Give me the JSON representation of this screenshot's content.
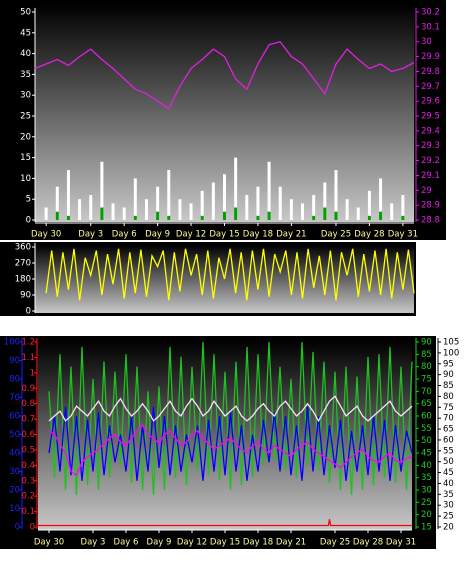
{
  "chart_data": [
    {
      "type": "bar",
      "xlim": [
        -1,
        33
      ],
      "xticks": [
        {
          "value": 0,
          "label": "Day 30"
        },
        {
          "value": 4,
          "label": "Day 3"
        },
        {
          "value": 7,
          "label": "Day 6"
        },
        {
          "value": 10,
          "label": "Day 9"
        },
        {
          "value": 13,
          "label": "Day 12"
        },
        {
          "value": 16,
          "label": "Day 15"
        },
        {
          "value": 19,
          "label": "Day 18"
        },
        {
          "value": 22,
          "label": "Day 21"
        },
        {
          "value": 26,
          "label": "Day 25"
        },
        {
          "value": 29,
          "label": "Day 28"
        },
        {
          "value": 32,
          "label": "Day 31"
        }
      ],
      "ylim": [
        0,
        50
      ],
      "yticks": [
        0,
        5,
        10,
        15,
        20,
        25,
        30,
        35,
        40,
        45,
        50
      ],
      "ycolor": "#ffffff",
      "y2lim": [
        28.8,
        30.2
      ],
      "y2ticks": [
        28.8,
        28.9,
        29,
        29.1,
        29.2,
        29.3,
        29.4,
        29.5,
        29.6,
        29.7,
        29.8,
        29.9,
        30,
        30.1,
        30.2
      ],
      "y2color": "#e020e0",
      "series": [
        {
          "color": "#ffffff",
          "axis": "y",
          "x": [
            0,
            1,
            2,
            3,
            4,
            5,
            6,
            7,
            8,
            9,
            10,
            11,
            12,
            13,
            14,
            15,
            16,
            17,
            18,
            19,
            20,
            21,
            22,
            23,
            24,
            25,
            26,
            27,
            28,
            29,
            30,
            31,
            32
          ],
          "values": [
            3,
            8,
            12,
            5,
            6,
            14,
            4,
            3,
            10,
            5,
            8,
            12,
            5,
            4,
            7,
            9,
            11,
            15,
            6,
            8,
            14,
            8,
            5,
            4,
            6,
            9,
            12,
            5,
            3,
            7,
            10,
            4,
            6
          ]
        },
        {
          "color": "#00a000",
          "axis": "y",
          "x": [
            0,
            1,
            2,
            3,
            4,
            5,
            6,
            7,
            8,
            9,
            10,
            11,
            12,
            13,
            14,
            15,
            16,
            17,
            18,
            19,
            20,
            21,
            22,
            23,
            24,
            25,
            26,
            27,
            28,
            29,
            30,
            31,
            32
          ],
          "values": [
            0,
            2,
            1,
            0,
            0,
            3,
            0,
            0,
            1,
            0,
            2,
            1,
            0,
            0,
            1,
            0,
            2,
            3,
            0,
            1,
            2,
            0,
            0,
            0,
            1,
            3,
            2,
            0,
            0,
            1,
            2,
            0,
            1
          ]
        },
        {
          "color": "#e020e0",
          "axis": "y2",
          "type": "line",
          "x": [
            -1,
            0,
            1,
            2,
            3,
            4,
            5,
            6,
            7,
            8,
            9,
            10,
            11,
            12,
            13,
            14,
            15,
            16,
            17,
            18,
            19,
            20,
            21,
            22,
            23,
            24,
            25,
            26,
            27,
            28,
            29,
            30,
            31,
            32,
            33
          ],
          "values": [
            29.82,
            29.85,
            29.88,
            29.84,
            29.9,
            29.95,
            29.88,
            29.82,
            29.75,
            29.68,
            29.65,
            29.6,
            29.55,
            29.7,
            29.82,
            29.88,
            29.95,
            29.9,
            29.75,
            29.68,
            29.85,
            29.98,
            30,
            29.9,
            29.85,
            29.75,
            29.65,
            29.85,
            29.95,
            29.88,
            29.82,
            29.85,
            29.8,
            29.82,
            29.86
          ]
        }
      ]
    },
    {
      "type": "line",
      "xlim": [
        -1,
        33
      ],
      "ylim": [
        0,
        360
      ],
      "yticks": [
        0,
        90,
        180,
        270,
        360
      ],
      "ycolor": "#ffffff",
      "x": [
        0,
        0.5,
        1,
        1.5,
        2,
        2.5,
        3,
        3.5,
        4,
        4.5,
        5,
        5.5,
        6,
        6.5,
        7,
        7.5,
        8,
        8.5,
        9,
        9.5,
        10,
        10.5,
        11,
        11.5,
        12,
        12.5,
        13,
        13.5,
        14,
        14.5,
        15,
        15.5,
        16,
        16.5,
        17,
        17.5,
        18,
        18.5,
        19,
        19.5,
        20,
        20.5,
        21,
        21.5,
        22,
        22.5,
        23,
        23.5,
        24,
        24.5,
        25,
        25.5,
        26,
        26.5,
        27,
        27.5,
        28,
        28.5,
        29,
        29.5,
        30,
        30.5,
        31,
        31.5,
        32,
        32.5,
        33
      ],
      "series": [
        {
          "color": "#ffff00",
          "axis": "y",
          "values": [
            100,
            340,
            80,
            330,
            120,
            350,
            60,
            300,
            200,
            340,
            90,
            320,
            150,
            350,
            70,
            330,
            100,
            345,
            80,
            310,
            250,
            340,
            60,
            330,
            110,
            350,
            200,
            320,
            90,
            340,
            70,
            300,
            180,
            350,
            100,
            330,
            60,
            340,
            120,
            350,
            80,
            320,
            220,
            340,
            90,
            330,
            70,
            350,
            130,
            310,
            90,
            340,
            60,
            330,
            200,
            350,
            80,
            320,
            110,
            340,
            90,
            350,
            70,
            330,
            120,
            345,
            100
          ]
        }
      ]
    },
    {
      "type": "line",
      "xlim": [
        -1,
        33
      ],
      "xticks": [
        {
          "value": 0,
          "label": "Day 30"
        },
        {
          "value": 4,
          "label": "Day 3"
        },
        {
          "value": 7,
          "label": "Day 6"
        },
        {
          "value": 10,
          "label": "Day 9"
        },
        {
          "value": 13,
          "label": "Day 12"
        },
        {
          "value": 16,
          "label": "Day 15"
        },
        {
          "value": 19,
          "label": "Day 18"
        },
        {
          "value": 22,
          "label": "Day 21"
        },
        {
          "value": 26,
          "label": "Day 25"
        },
        {
          "value": 29,
          "label": "Day 28"
        },
        {
          "value": 32,
          "label": "Day 31"
        }
      ],
      "ylim": [
        0,
        100
      ],
      "yticks": [
        0,
        10,
        20,
        30,
        40,
        50,
        60,
        70,
        80,
        90,
        100
      ],
      "ycolor": "#2020ff",
      "y3lim": [
        0,
        1.2
      ],
      "y3ticks": [
        0,
        0.1,
        0.2,
        0.3,
        0.4,
        0.5,
        0.6,
        0.7,
        0.8,
        0.9,
        1,
        1.1,
        1.2
      ],
      "y3color": "#ff2020",
      "y2lim": [
        15,
        90
      ],
      "y2ticks": [
        15,
        20,
        25,
        30,
        35,
        40,
        45,
        50,
        55,
        60,
        65,
        70,
        75,
        80,
        85,
        90
      ],
      "y2color": "#20d020",
      "y4lim": [
        20,
        105
      ],
      "y4ticks": [
        20,
        25,
        30,
        35,
        40,
        45,
        50,
        55,
        60,
        65,
        70,
        75,
        80,
        85,
        90,
        95,
        100,
        105
      ],
      "y4color": "#000000",
      "x": [
        0,
        0.5,
        1,
        1.5,
        2,
        2.5,
        3,
        3.5,
        4,
        4.5,
        5,
        5.5,
        6,
        6.5,
        7,
        7.5,
        8,
        8.5,
        9,
        9.5,
        10,
        10.5,
        11,
        11.5,
        12,
        12.5,
        13,
        13.5,
        14,
        14.5,
        15,
        15.5,
        16,
        16.5,
        17,
        17.5,
        18,
        18.5,
        19,
        19.5,
        20,
        20.5,
        21,
        21.5,
        22,
        22.5,
        23,
        23.5,
        24,
        24.5,
        25,
        25.5,
        26,
        26.5,
        27,
        27.5,
        28,
        28.5,
        29,
        29.5,
        30,
        30.5,
        31,
        31.5,
        32,
        32.5,
        33
      ],
      "series": [
        {
          "color": "#20c020",
          "axis": "y2",
          "values": [
            70,
            35,
            85,
            30,
            80,
            28,
            88,
            32,
            75,
            30,
            82,
            35,
            78,
            40,
            85,
            33,
            80,
            30,
            70,
            28,
            72,
            30,
            88,
            35,
            84,
            32,
            80,
            38,
            90,
            36,
            85,
            34,
            78,
            30,
            82,
            32,
            88,
            35,
            85,
            40,
            90,
            42,
            80,
            38,
            75,
            35,
            90,
            40,
            86,
            38,
            82,
            33,
            78,
            30,
            80,
            28,
            76,
            30,
            84,
            32,
            85,
            35,
            88,
            33,
            80,
            30,
            82
          ]
        },
        {
          "color": "#0000ff",
          "axis": "y",
          "values": [
            40,
            60,
            30,
            65,
            28,
            60,
            25,
            58,
            30,
            62,
            28,
            55,
            35,
            50,
            30,
            60,
            25,
            55,
            30,
            65,
            32,
            60,
            28,
            55,
            30,
            50,
            35,
            55,
            25,
            58,
            30,
            60,
            28,
            62,
            30,
            55,
            25,
            50,
            30,
            58,
            35,
            62,
            30,
            60,
            28,
            55,
            25,
            65,
            30,
            60,
            28,
            55,
            32,
            58,
            25,
            52,
            30,
            55,
            28,
            60,
            30,
            58,
            25,
            55,
            30,
            52,
            40
          ]
        },
        {
          "color": "#ffdcff",
          "axis": "y2",
          "values": [
            58,
            60,
            62,
            58,
            60,
            64,
            62,
            60,
            63,
            66,
            62,
            60,
            64,
            67,
            63,
            60,
            62,
            65,
            62,
            58,
            60,
            63,
            66,
            62,
            60,
            64,
            67,
            64,
            60,
            62,
            66,
            63,
            60,
            62,
            64,
            60,
            58,
            60,
            63,
            65,
            62,
            60,
            64,
            66,
            63,
            60,
            62,
            65,
            62,
            58,
            62,
            66,
            68,
            64,
            60,
            62,
            64,
            60,
            58,
            60,
            62,
            64,
            66,
            62,
            60,
            62,
            64
          ]
        },
        {
          "color": "#ff00ff",
          "axis": "y",
          "values": [
            52,
            50,
            45,
            40,
            30,
            28,
            35,
            38,
            40,
            42,
            45,
            48,
            50,
            46,
            44,
            48,
            52,
            55,
            50,
            48,
            45,
            50,
            52,
            48,
            44,
            46,
            50,
            52,
            48,
            45,
            42,
            44,
            46,
            48,
            45,
            42,
            40,
            44,
            46,
            42,
            40,
            44,
            42,
            40,
            38,
            42,
            44,
            46,
            42,
            40,
            38,
            36,
            34,
            32,
            35,
            38,
            40,
            42,
            38,
            36,
            35,
            38,
            40,
            36,
            35,
            37,
            38
          ]
        },
        {
          "color": "#ff0000",
          "axis": "y3",
          "x": [
            -1,
            25.4,
            25.5,
            25.6,
            33
          ],
          "values": [
            0.01,
            0.01,
            0.05,
            0.01,
            0.01
          ]
        }
      ]
    }
  ]
}
